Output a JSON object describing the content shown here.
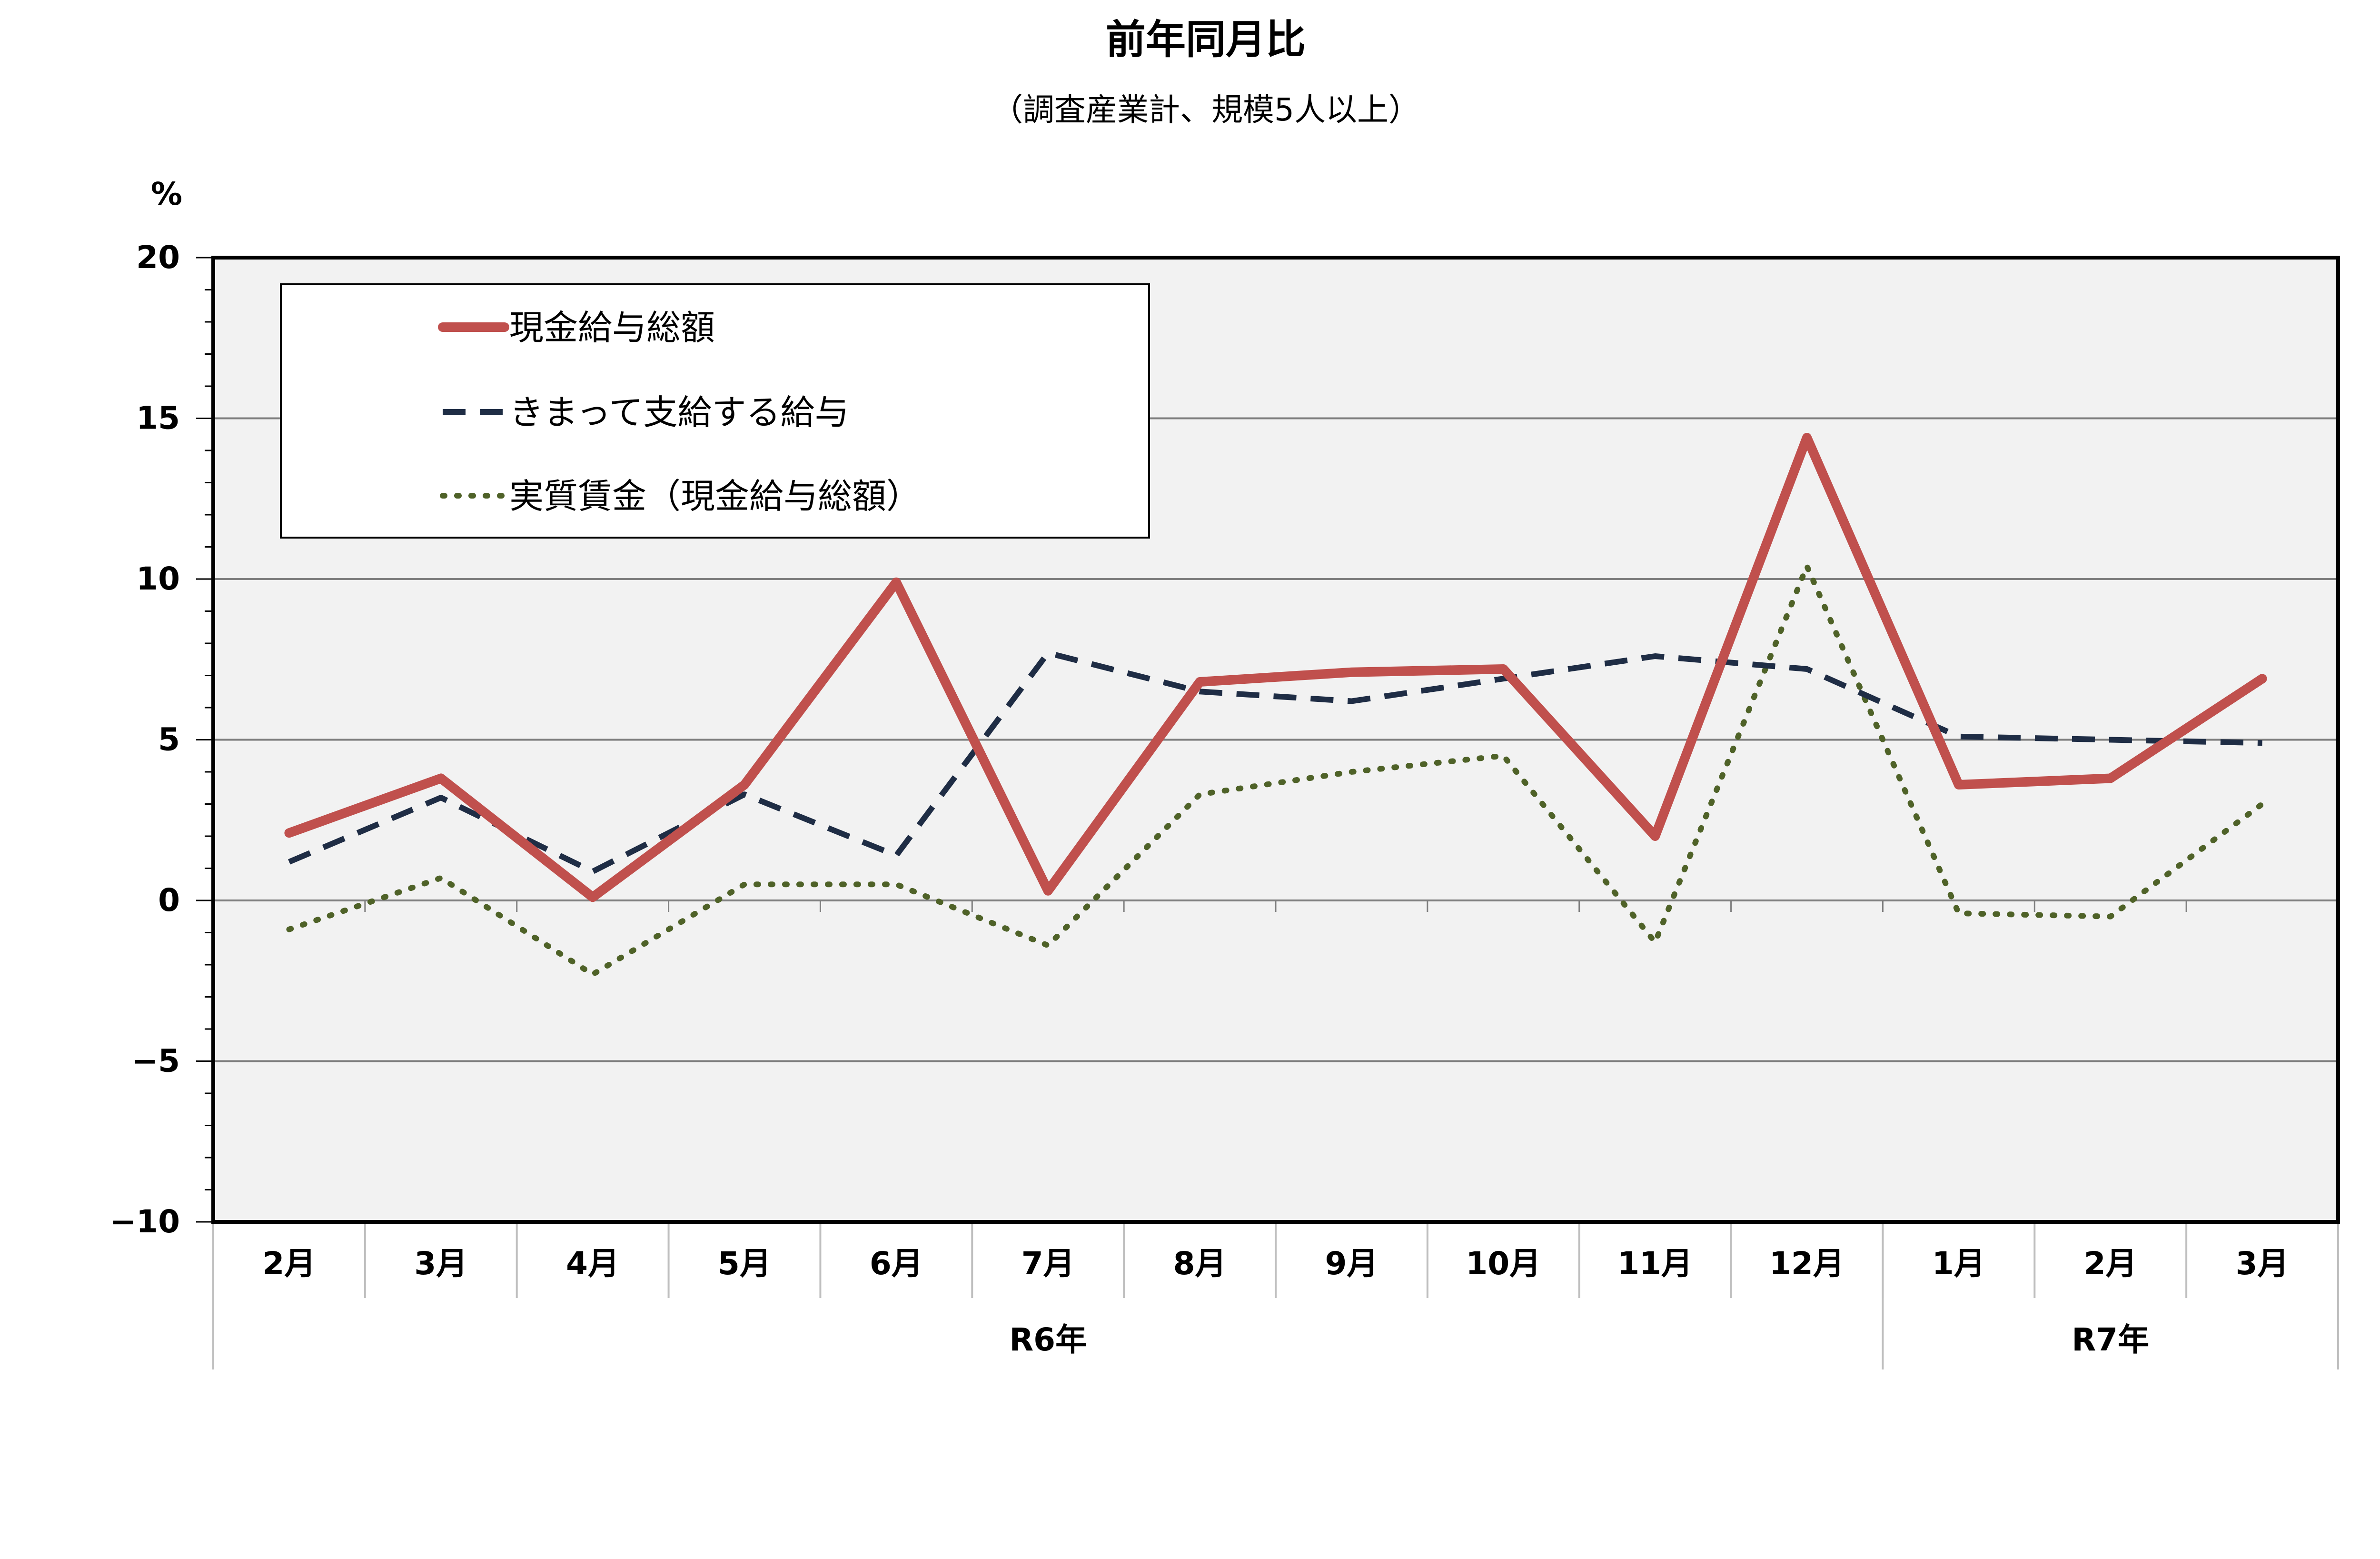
{
  "chart_data": {
    "type": "line",
    "title": "前年同月比",
    "subtitle": "（調査産業計、規模5人以上）",
    "ylabel": "%",
    "ylim": [
      -10,
      20
    ],
    "yticks": [
      "20",
      "15",
      "10",
      "5",
      "0",
      "−5",
      "−10"
    ],
    "ytick_values": [
      20,
      15,
      10,
      5,
      0,
      -5,
      -10
    ],
    "categories": [
      "2月",
      "3月",
      "4月",
      "5月",
      "6月",
      "7月",
      "8月",
      "9月",
      "10月",
      "11月",
      "12月",
      "1月",
      "2月",
      "3月"
    ],
    "groups": [
      {
        "label": "R6年",
        "span": 11
      },
      {
        "label": "R7年",
        "span": 3
      }
    ],
    "grid": true,
    "legend_position": "top-left",
    "series": [
      {
        "name": "現金給与総額",
        "color": "#C0504D",
        "style": "solid",
        "values": [
          2.1,
          3.8,
          0.1,
          3.6,
          9.9,
          0.3,
          6.8,
          7.1,
          7.2,
          2.0,
          14.4,
          3.6,
          3.8,
          6.9
        ]
      },
      {
        "name": "きまって支給する給与",
        "color": "#1F2D45",
        "style": "dashed",
        "values": [
          1.2,
          3.2,
          0.9,
          3.3,
          1.4,
          7.7,
          6.5,
          6.2,
          6.9,
          7.6,
          7.2,
          5.1,
          5.0,
          4.9
        ]
      },
      {
        "name": "実質賃金（現金給与総額）",
        "color": "#4F6228",
        "style": "dotted",
        "values": [
          -0.9,
          0.7,
          -2.3,
          0.5,
          0.5,
          -1.4,
          3.3,
          4.0,
          4.5,
          -1.3,
          10.4,
          -0.4,
          -0.5,
          3.0
        ]
      }
    ]
  }
}
